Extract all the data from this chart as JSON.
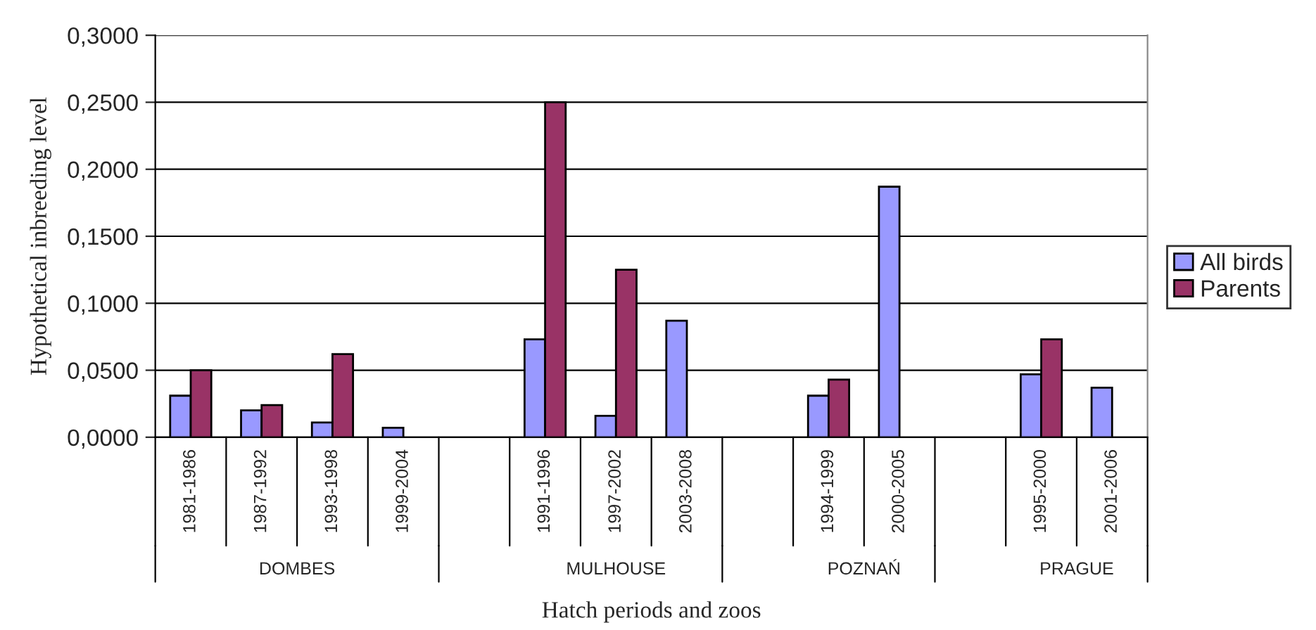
{
  "chart_data": {
    "type": "bar",
    "ylabel": "Hypothetical inbreeding level",
    "xlabel": "Hatch periods and zoos",
    "categories": [
      "1981-1986",
      "1987-1992",
      "1993-1998",
      "1999-2004",
      null,
      "1991-1996",
      "1997-2002",
      "2003-2008",
      null,
      "1994-1999",
      "2000-2005",
      null,
      "1995-2000",
      "2001-2006"
    ],
    "series": [
      {
        "name": "All birds",
        "color": "#9999ff",
        "values": [
          0.031,
          0.02,
          0.011,
          0.007,
          null,
          0.073,
          0.016,
          0.087,
          null,
          0.031,
          0.187,
          null,
          0.047,
          0.037
        ]
      },
      {
        "name": "Parents",
        "color": "#993366",
        "values": [
          0.05,
          0.024,
          0.062,
          null,
          null,
          0.25,
          0.125,
          null,
          null,
          0.043,
          null,
          null,
          0.073,
          null
        ]
      }
    ],
    "ylim": [
      0,
      0.3
    ],
    "yticks": [
      {
        "value": 0,
        "label": "0,0000"
      },
      {
        "value": 0.05,
        "label": "0,0500"
      },
      {
        "value": 0.1,
        "label": "0,1000"
      },
      {
        "value": 0.15,
        "label": "0,1500"
      },
      {
        "value": 0.2,
        "label": "0,2000"
      },
      {
        "value": 0.25,
        "label": "0,2500"
      },
      {
        "value": 0.3,
        "label": "0,3000"
      }
    ],
    "annotations": [
      "DOMBES",
      "MULHOUSE",
      "POZNAŃ",
      "PRAGUE"
    ],
    "grid": "y",
    "legend": "right"
  }
}
